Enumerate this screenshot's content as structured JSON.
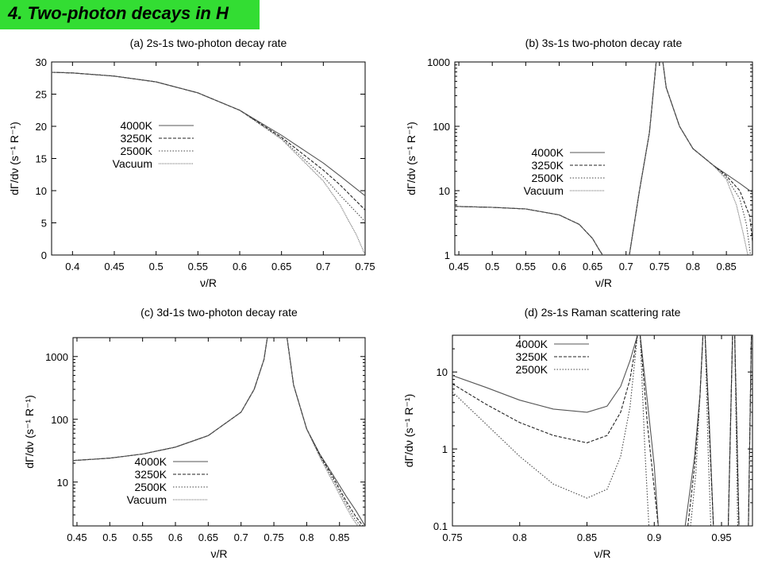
{
  "page": {
    "title": "4. Two-photon decays in H"
  },
  "chart_data": [
    {
      "type": "line",
      "title": "(a) 2s-1s two-photon decay rate",
      "xlabel": "ν/R",
      "ylabel": "dΓ/dν (s⁻¹ R⁻¹)",
      "xlim": [
        0.375,
        0.75
      ],
      "ylim": [
        0,
        30
      ],
      "yscale": "linear",
      "xticks": [
        0.4,
        0.45,
        0.5,
        0.55,
        0.6,
        0.65,
        0.7,
        0.75
      ],
      "xtick_labels": [
        "0.4",
        "0.45",
        "0.5",
        "0.55",
        "0.6",
        "0.65",
        "0.7",
        "0.75"
      ],
      "yticks": [
        0,
        5,
        10,
        15,
        20,
        25,
        30
      ],
      "ytick_labels": [
        "0",
        "5",
        "10",
        "15",
        "20",
        "25",
        "30"
      ],
      "legend_position": "center-left",
      "grid": false,
      "series": [
        {
          "name": "4000K",
          "dash": "solid",
          "x": [
            0.375,
            0.4,
            0.45,
            0.5,
            0.55,
            0.6,
            0.65,
            0.7,
            0.72,
            0.75
          ],
          "y": [
            28.4,
            28.3,
            27.8,
            26.9,
            25.2,
            22.5,
            18.6,
            14.3,
            12.3,
            9.2
          ]
        },
        {
          "name": "3250K",
          "dash": "dashed",
          "x": [
            0.375,
            0.4,
            0.45,
            0.5,
            0.55,
            0.6,
            0.65,
            0.7,
            0.72,
            0.75
          ],
          "y": [
            28.4,
            28.3,
            27.8,
            26.9,
            25.2,
            22.5,
            18.3,
            13.2,
            10.9,
            7.0
          ]
        },
        {
          "name": "2500K",
          "dash": "dotted",
          "x": [
            0.375,
            0.4,
            0.45,
            0.5,
            0.55,
            0.6,
            0.65,
            0.7,
            0.72,
            0.75
          ],
          "y": [
            28.4,
            28.3,
            27.8,
            26.9,
            25.2,
            22.5,
            18.1,
            12.2,
            9.3,
            5.2
          ]
        },
        {
          "name": "Vacuum",
          "dash": "fine-dotted",
          "x": [
            0.375,
            0.4,
            0.45,
            0.5,
            0.55,
            0.6,
            0.65,
            0.7,
            0.72,
            0.74,
            0.75
          ],
          "y": [
            28.4,
            28.3,
            27.8,
            26.9,
            25.2,
            22.5,
            18.0,
            11.5,
            7.8,
            3.0,
            0.0
          ]
        }
      ]
    },
    {
      "type": "line",
      "title": "(b) 3s-1s two-photon decay rate",
      "xlabel": "ν/R",
      "ylabel": "dΓ/dν (s⁻¹ R⁻¹)",
      "xlim": [
        0.444,
        0.889
      ],
      "ylim": [
        1,
        1000
      ],
      "yscale": "log",
      "xticks": [
        0.45,
        0.5,
        0.55,
        0.6,
        0.65,
        0.7,
        0.75,
        0.8,
        0.85
      ],
      "xtick_labels": [
        "0.45",
        "0.5",
        "0.55",
        "0.6",
        "0.65",
        "0.7",
        "0.75",
        "0.8",
        "0.85"
      ],
      "yticks": [
        1,
        10,
        100,
        1000
      ],
      "ytick_labels": [
        "1",
        "10",
        "100",
        "1000"
      ],
      "legend_position": "center-left",
      "grid": false,
      "series": [
        {
          "name": "4000K",
          "dash": "solid",
          "x": [
            0.444,
            0.5,
            0.55,
            0.6,
            0.63,
            0.65,
            0.66,
            0.665,
            null,
            0.705,
            0.72,
            0.735,
            0.745,
            null,
            0.755,
            0.76,
            0.78,
            0.8,
            0.83,
            0.85,
            0.87,
            0.885,
            0.889
          ],
          "y": [
            5.7,
            5.5,
            5.2,
            4.2,
            3.0,
            1.8,
            1.2,
            1.0,
            null,
            1.0,
            10.0,
            80.0,
            1000.0,
            null,
            1000.0,
            400.0,
            100.0,
            45.0,
            25.0,
            18.0,
            13.0,
            10.0,
            9.5
          ]
        },
        {
          "name": "3250K",
          "dash": "dashed",
          "x": [
            0.444,
            0.5,
            0.55,
            0.6,
            0.63,
            0.65,
            0.66,
            0.665,
            null,
            0.705,
            0.72,
            0.735,
            0.745,
            null,
            0.755,
            0.76,
            0.78,
            0.8,
            0.83,
            0.85,
            0.87,
            0.885,
            0.889
          ],
          "y": [
            5.7,
            5.5,
            5.2,
            4.2,
            3.0,
            1.8,
            1.2,
            1.0,
            null,
            1.0,
            10.0,
            80.0,
            1000.0,
            null,
            1000.0,
            400.0,
            100.0,
            45.0,
            25.0,
            17.0,
            10.0,
            4.0,
            1.6
          ]
        },
        {
          "name": "2500K",
          "dash": "dotted",
          "x": [
            0.444,
            0.5,
            0.55,
            0.6,
            0.63,
            0.65,
            0.66,
            0.665,
            null,
            0.705,
            0.72,
            0.735,
            0.745,
            null,
            0.755,
            0.76,
            0.78,
            0.8,
            0.83,
            0.85,
            0.87,
            0.88,
            0.886
          ],
          "y": [
            5.7,
            5.5,
            5.2,
            4.2,
            3.0,
            1.8,
            1.2,
            1.0,
            null,
            1.0,
            10.0,
            80.0,
            1000.0,
            null,
            1000.0,
            400.0,
            100.0,
            45.0,
            25.0,
            16.0,
            7.5,
            3.0,
            1.0
          ]
        },
        {
          "name": "Vacuum",
          "dash": "fine-dotted",
          "x": [
            0.444,
            0.5,
            0.55,
            0.6,
            0.63,
            0.65,
            0.66,
            0.665,
            null,
            0.705,
            0.72,
            0.735,
            0.745,
            null,
            0.755,
            0.76,
            0.78,
            0.8,
            0.83,
            0.85,
            0.865,
            0.875,
            0.882
          ],
          "y": [
            5.7,
            5.5,
            5.2,
            4.2,
            3.0,
            1.8,
            1.2,
            1.0,
            null,
            1.0,
            10.0,
            80.0,
            1000.0,
            null,
            1000.0,
            400.0,
            100.0,
            45.0,
            25.0,
            15.0,
            6.0,
            2.2,
            1.0
          ]
        }
      ]
    },
    {
      "type": "line",
      "title": "(c) 3d-1s two-photon decay rate",
      "xlabel": "ν/R",
      "ylabel": "dΓ/dν (s⁻¹ R⁻¹)",
      "xlim": [
        0.444,
        0.889
      ],
      "ylim": [
        2,
        2000
      ],
      "yscale": "log",
      "xticks": [
        0.45,
        0.5,
        0.55,
        0.6,
        0.65,
        0.7,
        0.75,
        0.8,
        0.85
      ],
      "xtick_labels": [
        "0.45",
        "0.5",
        "0.55",
        "0.6",
        "0.65",
        "0.7",
        "0.75",
        "0.8",
        "0.85"
      ],
      "yticks": [
        10,
        100,
        1000
      ],
      "ytick_labels": [
        "10",
        "100",
        "1000"
      ],
      "legend_position": "bottom-center",
      "grid": false,
      "series": [
        {
          "name": "4000K",
          "dash": "solid",
          "x": [
            0.444,
            0.5,
            0.55,
            0.6,
            0.65,
            0.7,
            0.72,
            0.735,
            0.74,
            null,
            0.77,
            0.78,
            0.8,
            0.82,
            0.84,
            0.86,
            0.875,
            0.889
          ],
          "y": [
            22.0,
            24.0,
            28.0,
            36.0,
            55.0,
            130.0,
            300.0,
            900.0,
            2000.0,
            null,
            2000.0,
            350.0,
            70.0,
            28.0,
            13.0,
            6.0,
            3.5,
            2.0
          ]
        },
        {
          "name": "3250K",
          "dash": "dashed",
          "x": [
            0.444,
            0.5,
            0.55,
            0.6,
            0.65,
            0.7,
            0.72,
            0.735,
            0.74,
            null,
            0.77,
            0.78,
            0.8,
            0.82,
            0.84,
            0.86,
            0.875,
            0.886
          ],
          "y": [
            22.0,
            24.0,
            28.0,
            36.0,
            55.0,
            130.0,
            300.0,
            900.0,
            2000.0,
            null,
            2000.0,
            350.0,
            70.0,
            27.0,
            12.0,
            5.0,
            2.8,
            2.0
          ]
        },
        {
          "name": "2500K",
          "dash": "dotted",
          "x": [
            0.444,
            0.5,
            0.55,
            0.6,
            0.65,
            0.7,
            0.72,
            0.735,
            0.74,
            null,
            0.77,
            0.78,
            0.8,
            0.82,
            0.84,
            0.86,
            0.872,
            0.882
          ],
          "y": [
            22.0,
            24.0,
            28.0,
            36.0,
            55.0,
            130.0,
            300.0,
            900.0,
            2000.0,
            null,
            2000.0,
            350.0,
            70.0,
            26.0,
            11.0,
            4.5,
            2.7,
            2.0
          ]
        },
        {
          "name": "Vacuum",
          "dash": "fine-dotted",
          "x": [
            0.444,
            0.5,
            0.55,
            0.6,
            0.65,
            0.7,
            0.72,
            0.735,
            0.74,
            null,
            0.77,
            0.78,
            0.8,
            0.82,
            0.84,
            0.86,
            0.87,
            0.878
          ],
          "y": [
            22.0,
            24.0,
            28.0,
            36.0,
            55.0,
            130.0,
            300.0,
            900.0,
            2000.0,
            null,
            2000.0,
            350.0,
            70.0,
            25.0,
            10.0,
            4.0,
            2.6,
            2.0
          ]
        }
      ]
    },
    {
      "type": "line",
      "title": "(d) 2s-1s Raman scattering rate",
      "xlabel": "ν/R",
      "ylabel": "dΓ/dν (s⁻¹ R⁻¹)",
      "xlim": [
        0.75,
        0.973
      ],
      "ylim": [
        0.1,
        30
      ],
      "yscale": "log",
      "xticks": [
        0.75,
        0.8,
        0.85,
        0.9,
        0.95
      ],
      "xtick_labels": [
        "0.75",
        "0.8",
        "0.85",
        "0.9",
        "0.95"
      ],
      "yticks": [
        0.1,
        1,
        10
      ],
      "ytick_labels": [
        "0.1",
        "1",
        "10"
      ],
      "legend_position": "top-left",
      "grid": false,
      "series": [
        {
          "name": "4000K",
          "dash": "solid",
          "x": [
            0.75,
            0.775,
            0.8,
            0.825,
            0.85,
            0.865,
            0.875,
            0.882,
            0.8875,
            null,
            0.8895,
            0.895,
            0.9,
            0.903,
            null,
            0.923,
            0.93,
            0.934,
            0.9362,
            null,
            0.9378,
            0.941,
            0.944,
            null,
            0.955,
            0.9582,
            null,
            0.9598,
            0.963,
            null,
            0.97,
            0.9722
          ],
          "y": [
            9.0,
            6.3,
            4.3,
            3.3,
            3.0,
            3.6,
            6.5,
            14.0,
            30.0,
            null,
            30.0,
            4.0,
            0.6,
            0.1,
            null,
            0.1,
            0.8,
            5.0,
            30.0,
            null,
            30.0,
            2.0,
            0.1,
            null,
            0.1,
            30.0,
            null,
            30.0,
            0.1,
            null,
            0.1,
            30.0
          ]
        },
        {
          "name": "3250K",
          "dash": "dashed",
          "x": [
            0.75,
            0.775,
            0.8,
            0.825,
            0.85,
            0.865,
            0.875,
            0.882,
            0.8875,
            null,
            0.8895,
            0.895,
            0.9,
            0.903,
            null,
            0.925,
            0.93,
            0.934,
            0.9362,
            null,
            0.9378,
            0.941,
            0.944,
            null,
            0.955,
            0.9582,
            null,
            0.9598,
            0.963,
            null,
            0.97,
            0.9722
          ],
          "y": [
            7.0,
            3.8,
            2.2,
            1.5,
            1.2,
            1.5,
            3.0,
            8.0,
            30.0,
            null,
            30.0,
            2.0,
            0.3,
            0.1,
            null,
            0.1,
            0.6,
            5.0,
            30.0,
            null,
            30.0,
            1.5,
            0.1,
            null,
            0.1,
            30.0,
            null,
            30.0,
            0.1,
            null,
            0.1,
            30.0
          ]
        },
        {
          "name": "2500K",
          "dash": "dotted",
          "x": [
            0.75,
            0.775,
            0.8,
            0.825,
            0.85,
            0.865,
            0.875,
            0.882,
            0.8875,
            null,
            0.8895,
            0.893,
            0.896,
            null,
            0.927,
            0.931,
            0.934,
            0.9362,
            null,
            0.9378,
            0.94,
            0.942,
            null,
            0.955,
            0.9582,
            null,
            0.9598,
            0.962,
            null,
            0.97,
            0.9722
          ],
          "y": [
            5.5,
            2.1,
            0.8,
            0.35,
            0.23,
            0.3,
            0.8,
            3.5,
            30.0,
            null,
            30.0,
            1.0,
            0.1,
            null,
            0.1,
            0.5,
            5.0,
            30.0,
            null,
            30.0,
            1.0,
            0.1,
            null,
            0.1,
            30.0,
            null,
            30.0,
            0.1,
            null,
            0.1,
            30.0
          ]
        }
      ]
    }
  ]
}
